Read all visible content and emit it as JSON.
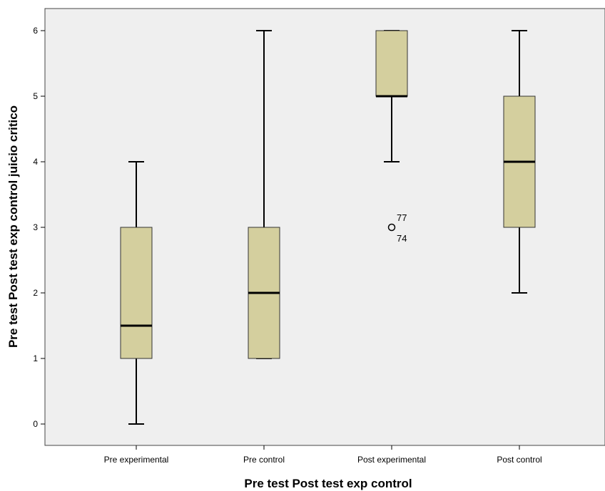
{
  "chart_data": {
    "type": "boxplot",
    "title": "",
    "xlabel": "Pre test Post test exp control",
    "ylabel": "Pre test Post test exp control juicio critico",
    "ylim": [
      -0.33,
      6.35
    ],
    "yticks": [
      0,
      1,
      2,
      3,
      4,
      5,
      6
    ],
    "categories": [
      "Pre experimental",
      "Pre control",
      "Post experimental",
      "Post control"
    ],
    "boxes": [
      {
        "category": "Pre experimental",
        "min": 0,
        "q1": 1,
        "median": 1.5,
        "q3": 3,
        "max": 4,
        "outliers": []
      },
      {
        "category": "Pre control",
        "min": 1,
        "q1": 1,
        "median": 2,
        "q3": 3,
        "max": 6,
        "outliers": []
      },
      {
        "category": "Post experimental",
        "min": 4,
        "q1": 5,
        "median": 5,
        "q3": 6,
        "max": 6,
        "outliers": [
          {
            "value": 3,
            "labels": [
              "77",
              "74"
            ]
          }
        ]
      },
      {
        "category": "Post control",
        "min": 2,
        "q1": 3,
        "median": 4,
        "q3": 5,
        "max": 6,
        "outliers": []
      }
    ],
    "grid": false,
    "colors": {
      "box_fill": "#d4cf9e",
      "plot_bg": "#efefef",
      "line": "#000000"
    }
  }
}
